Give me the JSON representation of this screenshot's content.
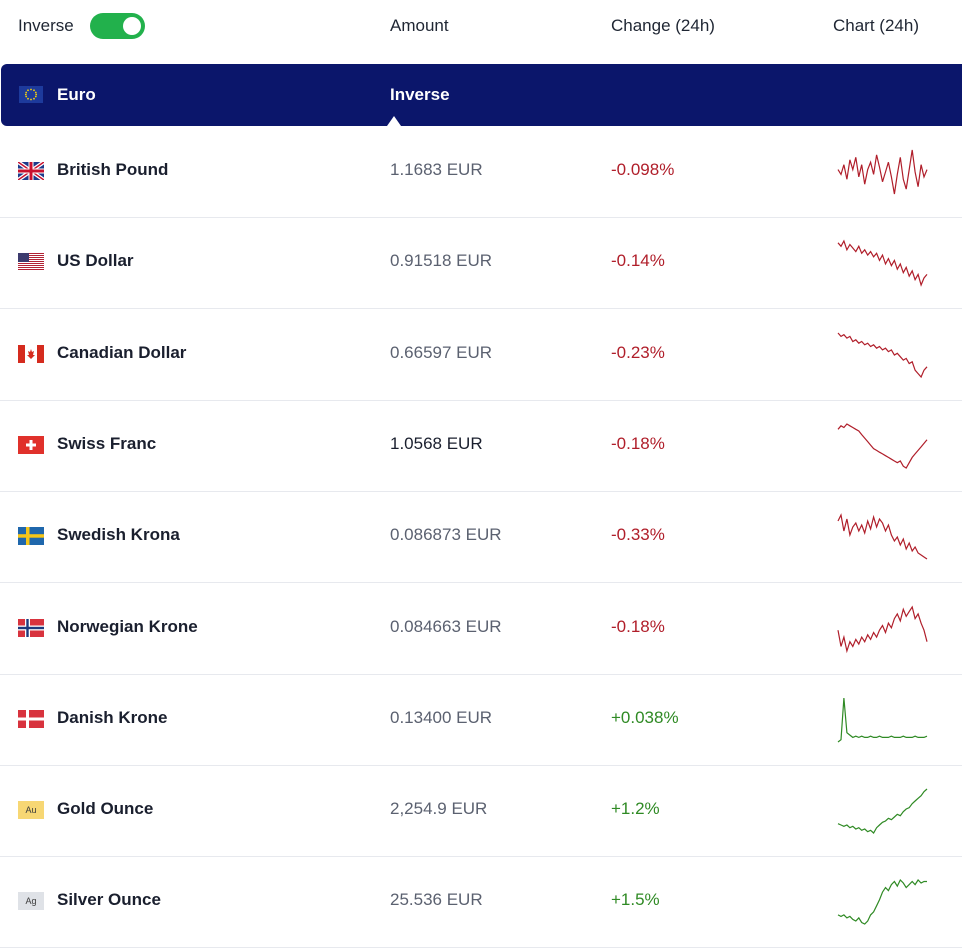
{
  "header": {
    "inverse_label": "Inverse",
    "inverse_on": true,
    "col_amount": "Amount",
    "col_change": "Change (24h)",
    "col_chart": "Chart (24h)"
  },
  "base": {
    "name": "Euro",
    "inverse_label": "Inverse",
    "flag_icon": "eu-flag-icon"
  },
  "colors": {
    "navy": "#0b166b",
    "toggle_green": "#22b14c",
    "negative": "#b01e2a",
    "positive": "#2f8a24"
  },
  "rows": [
    {
      "name": "British Pound",
      "amount": "1.1683 EUR",
      "change": "-0.098%",
      "dir": "neg",
      "flag": "uk-flag-icon",
      "spark": [
        50,
        48,
        52,
        46,
        54,
        50,
        55,
        47,
        52,
        44,
        50,
        53,
        48,
        56,
        51,
        45,
        49,
        53,
        47,
        40,
        48,
        55,
        46,
        42,
        50,
        58,
        49,
        43,
        52,
        47,
        50
      ]
    },
    {
      "name": "US Dollar",
      "amount": "0.91518 EUR",
      "change": "-0.14%",
      "dir": "neg",
      "flag": "us-flag-icon",
      "spark": [
        62,
        60,
        63,
        58,
        61,
        59,
        57,
        60,
        56,
        58,
        55,
        57,
        54,
        56,
        52,
        55,
        50,
        53,
        49,
        52,
        47,
        50,
        45,
        48,
        43,
        46,
        41,
        44,
        38,
        42,
        44
      ]
    },
    {
      "name": "Canadian Dollar",
      "amount": "0.66597 EUR",
      "change": "-0.23%",
      "dir": "neg",
      "flag": "ca-flag-icon",
      "spark": [
        60,
        58,
        59,
        57,
        58,
        55,
        56,
        54,
        55,
        53,
        54,
        52,
        53,
        51,
        52,
        50,
        51,
        49,
        50,
        47,
        48,
        46,
        44,
        45,
        42,
        43,
        38,
        36,
        34,
        38,
        40
      ]
    },
    {
      "name": "Swiss Franc",
      "amount": "1.0568 EUR",
      "change": "-0.18%",
      "dir": "neg",
      "flag": "ch-flag-icon",
      "spark": [
        58,
        60,
        59,
        61,
        60,
        59,
        58,
        57,
        55,
        53,
        51,
        49,
        47,
        46,
        45,
        44,
        43,
        42,
        41,
        40,
        39,
        40,
        37,
        36,
        39,
        42,
        44,
        46,
        48,
        50,
        52
      ]
    },
    {
      "name": "Swedish Krona",
      "amount": "0.086873 EUR",
      "change": "-0.33%",
      "dir": "neg",
      "flag": "se-flag-icon",
      "spark": [
        55,
        58,
        50,
        56,
        48,
        52,
        54,
        50,
        53,
        49,
        55,
        51,
        57,
        52,
        56,
        54,
        50,
        53,
        48,
        45,
        47,
        43,
        46,
        41,
        44,
        40,
        42,
        39,
        38,
        37,
        36
      ]
    },
    {
      "name": "Norwegian Krone",
      "amount": "0.084663 EUR",
      "change": "-0.18%",
      "dir": "neg",
      "flag": "no-flag-icon",
      "spark": [
        45,
        38,
        42,
        36,
        40,
        38,
        41,
        39,
        42,
        40,
        43,
        41,
        44,
        42,
        45,
        47,
        44,
        48,
        46,
        50,
        52,
        49,
        54,
        51,
        53,
        55,
        50,
        52,
        48,
        45,
        40
      ]
    },
    {
      "name": "Danish Krone",
      "amount": "0.13400 EUR",
      "change": "+0.038%",
      "dir": "pos",
      "flag": "dk-flag-icon",
      "spark": [
        32,
        34,
        70,
        40,
        38,
        36,
        37,
        36,
        37,
        36,
        36,
        37,
        36,
        36,
        37,
        36,
        36,
        36,
        37,
        36,
        36,
        36,
        37,
        36,
        36,
        36,
        37,
        36,
        36,
        36,
        37
      ]
    },
    {
      "name": "Gold Ounce",
      "amount": "2,254.9 EUR",
      "change": "+1.2%",
      "dir": "pos",
      "flag": "au-badge-icon",
      "badge": "Au",
      "spark": [
        38,
        37,
        36,
        37,
        35,
        36,
        34,
        35,
        33,
        34,
        32,
        33,
        31,
        35,
        37,
        39,
        40,
        42,
        41,
        43,
        45,
        44,
        47,
        49,
        50,
        53,
        55,
        57,
        59,
        62,
        64
      ]
    },
    {
      "name": "Silver Ounce",
      "amount": "25.536 EUR",
      "change": "+1.5%",
      "dir": "pos",
      "flag": "ag-badge-icon",
      "badge": "Ag",
      "spark": [
        40,
        39,
        40,
        38,
        39,
        37,
        36,
        38,
        35,
        34,
        36,
        40,
        42,
        46,
        50,
        55,
        58,
        56,
        60,
        62,
        59,
        63,
        61,
        58,
        60,
        62,
        60,
        63,
        61,
        62,
        62
      ]
    }
  ]
}
